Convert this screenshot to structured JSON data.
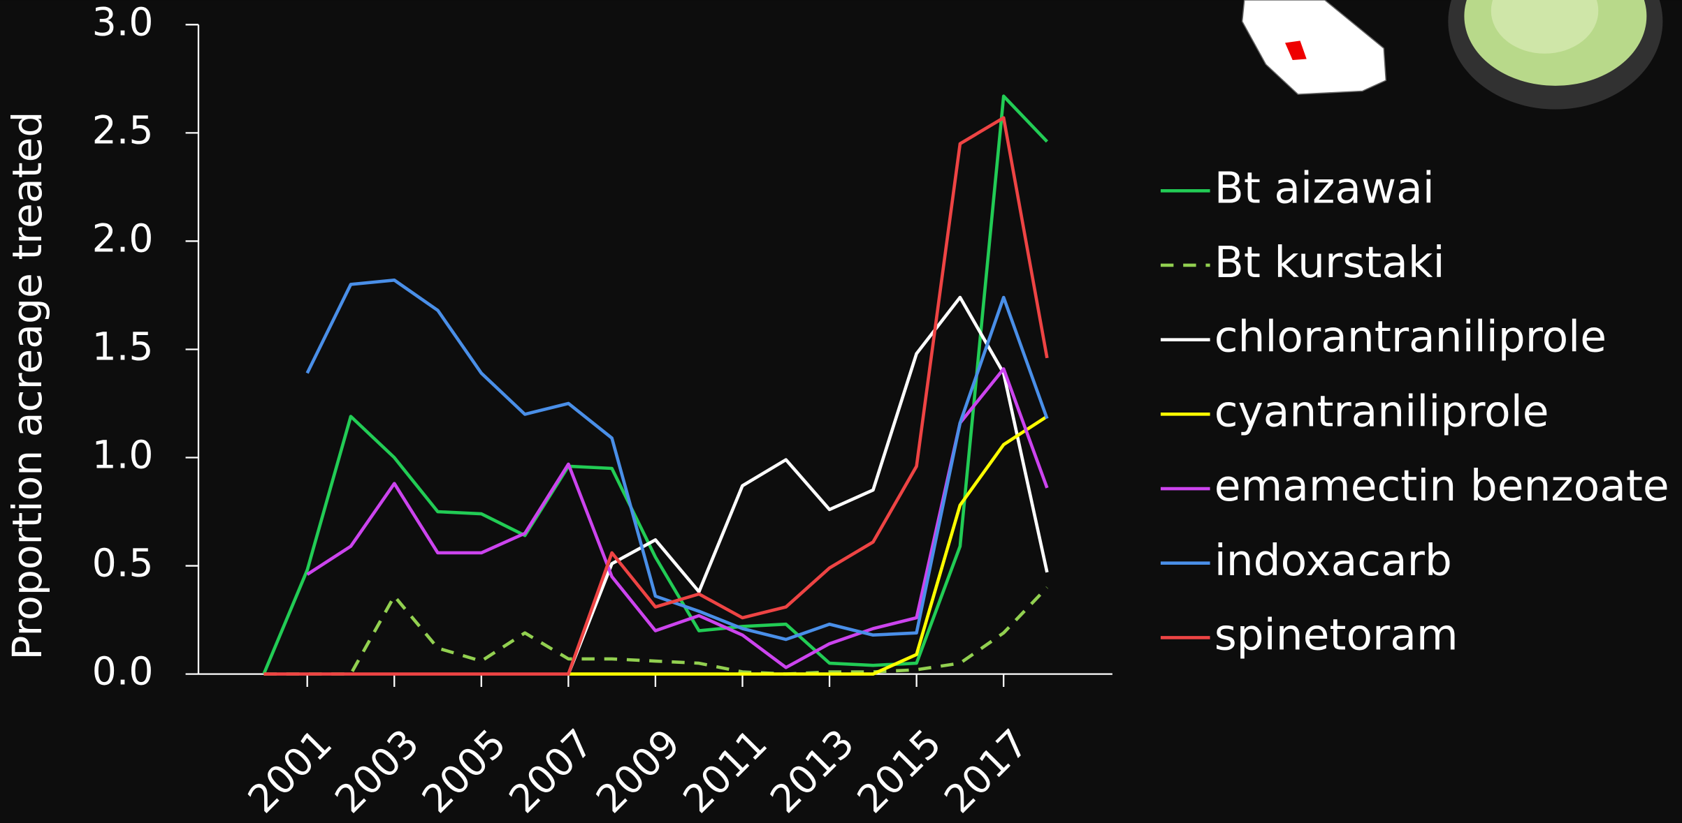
{
  "chart_data": {
    "type": "line",
    "y_label": "Proportion acreage treated",
    "x": [
      2000,
      2001,
      2002,
      2003,
      2004,
      2005,
      2006,
      2007,
      2008,
      2009,
      2010,
      2011,
      2012,
      2013,
      2014,
      2015,
      2016,
      2017,
      2018
    ],
    "xlim": [
      1998.5,
      2019.5
    ],
    "xticks": [
      2001,
      2003,
      2005,
      2007,
      2009,
      2011,
      2013,
      2015,
      2017
    ],
    "ylim": [
      0,
      3
    ],
    "yticks": [
      {
        "value": 0,
        "label": "0.0"
      },
      {
        "value": 0.5,
        "label": "0.5"
      },
      {
        "value": 1,
        "label": "1.0"
      },
      {
        "value": 1.5,
        "label": "1.5"
      },
      {
        "value": 2,
        "label": "2.0"
      },
      {
        "value": 2.5,
        "label": "2.5"
      },
      {
        "value": 3,
        "label": "3.0"
      }
    ],
    "series": [
      {
        "name": "Bt aizawai",
        "color": "#22cc55",
        "dash": false,
        "values": [
          0,
          0.48,
          1.19,
          1.0,
          0.75,
          0.74,
          0.64,
          0.96,
          0.95,
          0.54,
          0.2,
          0.22,
          0.23,
          0.05,
          0.04,
          0.05,
          0.59,
          2.67,
          2.46
        ]
      },
      {
        "name": "Bt kurstaki",
        "color": "#92d050",
        "dash": true,
        "values": [
          0,
          0,
          0,
          0.36,
          0.12,
          0.06,
          0.19,
          0.07,
          0.07,
          0.06,
          0.05,
          0.01,
          0,
          0.01,
          0.01,
          0.02,
          0.05,
          0.19,
          0.4
        ]
      },
      {
        "name": "chlorantraniliprole",
        "color": "#ffffff",
        "dash": false,
        "values": [
          null,
          null,
          null,
          null,
          null,
          null,
          null,
          0,
          0.51,
          0.62,
          0.38,
          0.87,
          0.99,
          0.76,
          0.85,
          1.48,
          1.74,
          1.39,
          0.47
        ]
      },
      {
        "name": "cyantraniliprole",
        "color": "#ffff00",
        "dash": false,
        "values": [
          null,
          null,
          null,
          null,
          null,
          null,
          null,
          0,
          0,
          0,
          0,
          0,
          0,
          0,
          0,
          0.09,
          0.78,
          1.06,
          1.19
        ]
      },
      {
        "name": "emamectin benzoate",
        "color": "#cc44ee",
        "dash": false,
        "values": [
          null,
          0.46,
          0.59,
          0.88,
          0.56,
          0.56,
          0.65,
          0.97,
          0.45,
          0.2,
          0.27,
          0.18,
          0.03,
          0.14,
          0.21,
          0.26,
          1.16,
          1.41,
          0.86
        ]
      },
      {
        "name": "indoxacarb",
        "color": "#4a8fe8",
        "dash": false,
        "values": [
          null,
          1.39,
          1.8,
          1.82,
          1.68,
          1.39,
          1.2,
          1.25,
          1.09,
          0.36,
          0.29,
          0.21,
          0.16,
          0.23,
          0.18,
          0.19,
          1.16,
          1.74,
          1.18
        ]
      },
      {
        "name": "spinetoram",
        "color": "#ee4444",
        "dash": false,
        "values": [
          0,
          0,
          0,
          0,
          0,
          0,
          0,
          0,
          0.56,
          0.31,
          0.37,
          0.26,
          0.31,
          0.49,
          0.61,
          0.96,
          2.45,
          2.57,
          1.46
        ]
      }
    ]
  }
}
